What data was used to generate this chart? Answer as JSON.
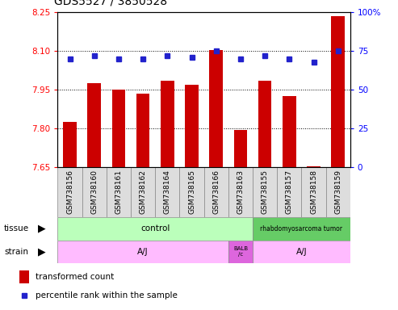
{
  "title": "GDS5527 / 3850528",
  "samples": [
    "GSM738156",
    "GSM738160",
    "GSM738161",
    "GSM738162",
    "GSM738164",
    "GSM738165",
    "GSM738166",
    "GSM738163",
    "GSM738155",
    "GSM738157",
    "GSM738158",
    "GSM738159"
  ],
  "bar_values": [
    7.825,
    7.975,
    7.95,
    7.935,
    7.985,
    7.97,
    8.105,
    7.795,
    7.985,
    7.925,
    7.655,
    8.235
  ],
  "dot_values": [
    70,
    72,
    70,
    70,
    72,
    71,
    75,
    70,
    72,
    70,
    68,
    75
  ],
  "ylim_left": [
    7.65,
    8.25
  ],
  "ylim_right": [
    0,
    100
  ],
  "yticks_left": [
    7.65,
    7.8,
    7.95,
    8.1,
    8.25
  ],
  "yticks_right": [
    0,
    25,
    50,
    75,
    100
  ],
  "bar_color": "#cc0000",
  "dot_color": "#2222cc",
  "bar_bottom": 7.65,
  "ctrl_color": "#bbffbb",
  "rhab_color": "#66cc66",
  "strain_aj_color": "#ffbbff",
  "strain_balb_color": "#dd66dd",
  "legend_bar_color": "#cc0000",
  "legend_dot_color": "#2222cc",
  "background_color": "#ffffff",
  "title_fontsize": 10,
  "tick_fontsize": 7.5,
  "sample_fontsize": 6.5,
  "annotation_fontsize": 7.5,
  "label_row_fontsize": 7.5
}
